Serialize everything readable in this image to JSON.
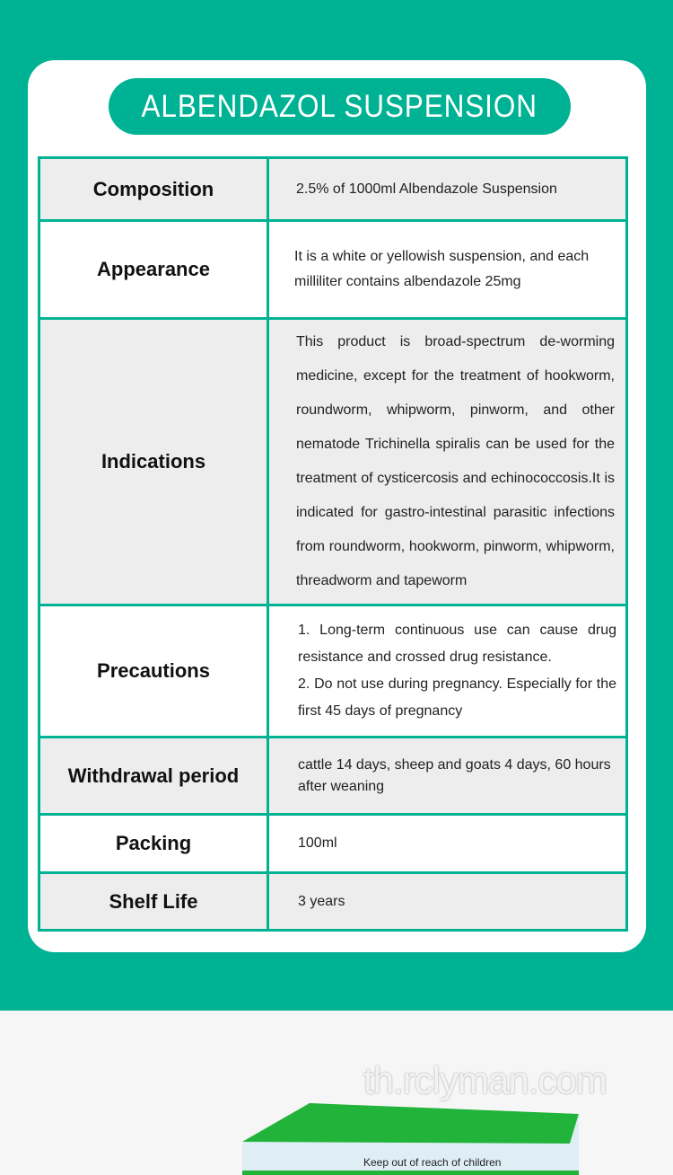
{
  "title": "ALBENDAZOL SUSPENSION",
  "colors": {
    "accent": "#00b294",
    "row_gray": "#ededed"
  },
  "rows": [
    {
      "label": "Composition",
      "value": "2.5% of 1000ml Albendazole Suspension"
    },
    {
      "label": "Appearance",
      "value": "It is a white or yellowish suspension, and each milliliter contains albendazole 25mg"
    },
    {
      "label": "Indications",
      "value": "This product is broad-spectrum de-worming medicine, except for the treatment of hookworm, roundworm, whipworm, pinworm, and other nematode Trichinella spiralis can be used for the treatment of cysticercosis and echinococcosis.It is indicated for gastro-intestinal parasitic infections from roundworm, hookworm, pinworm, whipworm, threadworm and tapeworm"
    },
    {
      "label": "Precautions",
      "value1": "1. Long-term continuous use can cause drug resistance and crossed drug resistance.",
      "value2": "2. Do not use during pregnancy. Especially for the first 45 days of pregnancy"
    },
    {
      "label": "Withdrawal period",
      "value": "cattle 14 days, sheep and goats 4 days, 60 hours after weaning"
    },
    {
      "label": "Packing",
      "value": "100ml"
    },
    {
      "label": "Shelf Life",
      "value": "3 years"
    }
  ],
  "product": {
    "box_text": "Keep out of reach of children"
  },
  "watermark": "th.rclyman.com"
}
